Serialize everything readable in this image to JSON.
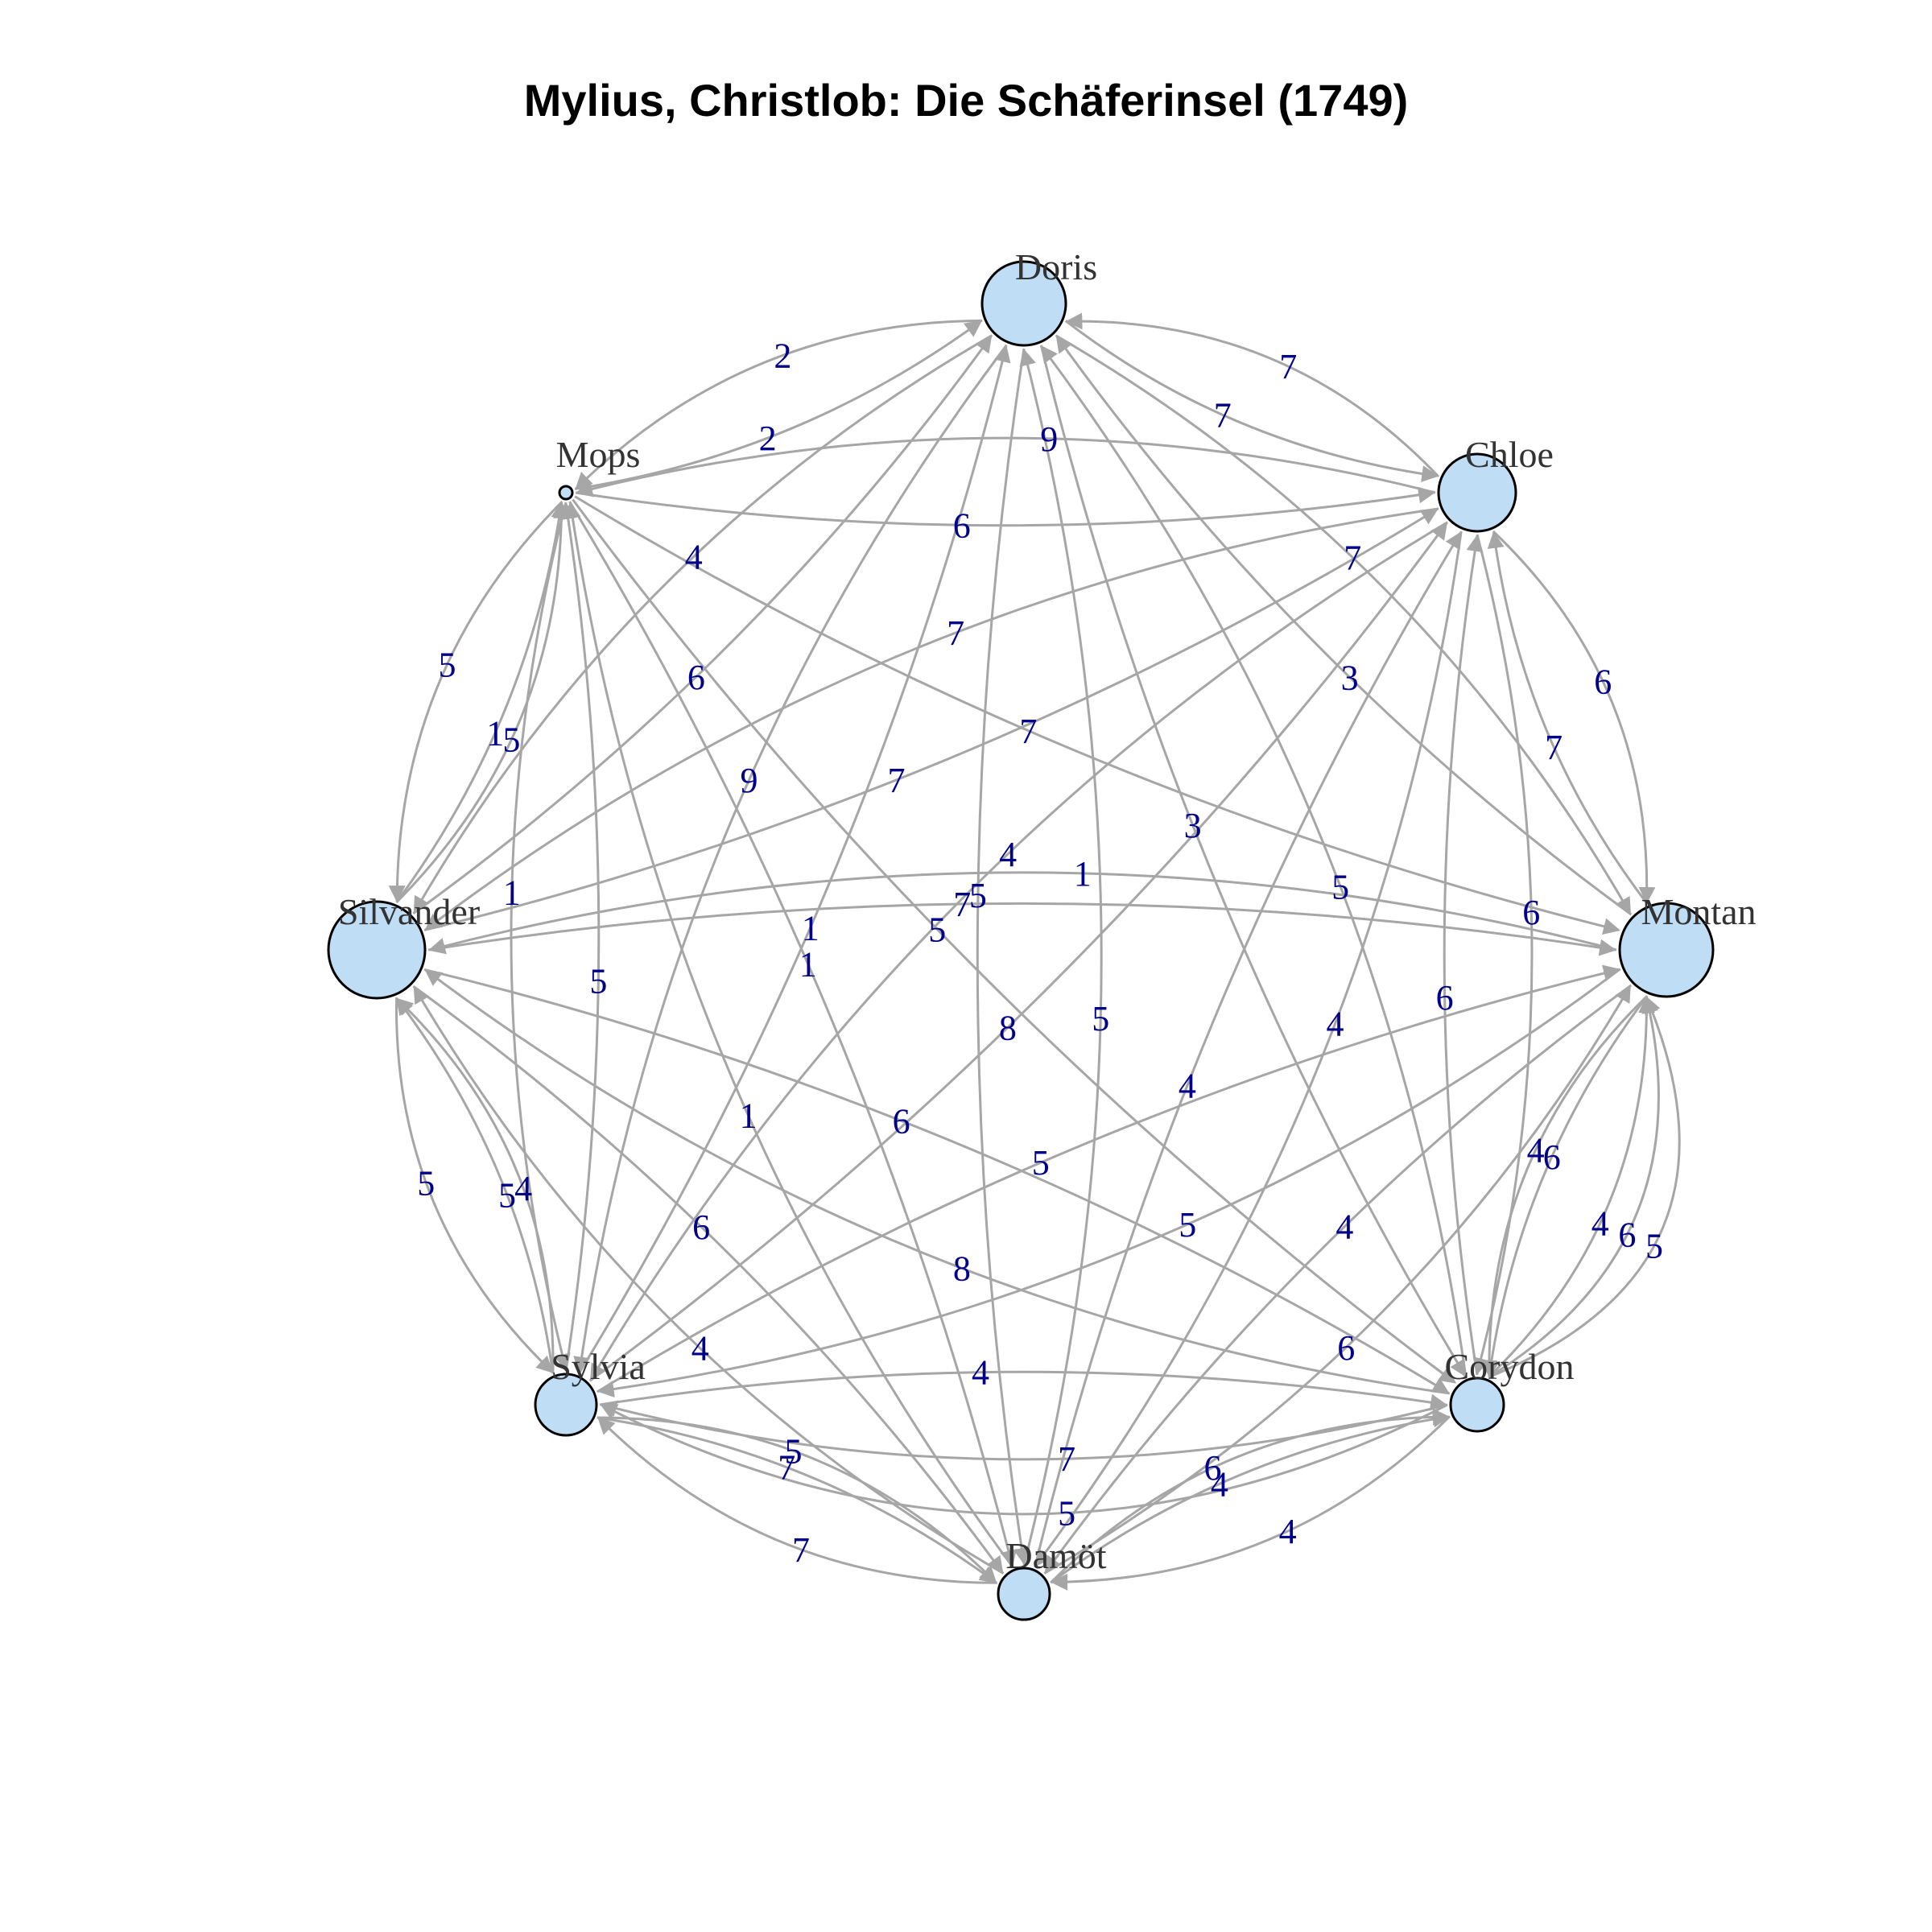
{
  "title": "Mylius, Christlob: Die Schäferinsel (1749)",
  "nodes": [
    {
      "id": "Doris",
      "label": "Doris"
    },
    {
      "id": "Chloe",
      "label": "Chloe"
    },
    {
      "id": "Montan",
      "label": "Montan"
    },
    {
      "id": "Corydon",
      "label": "Corydon"
    },
    {
      "id": "Damöt",
      "label": "Damöt"
    },
    {
      "id": "Sylvia",
      "label": "Sylvia"
    },
    {
      "id": "Silvander",
      "label": "Silvander"
    },
    {
      "id": "Mops",
      "label": "Mops"
    }
  ],
  "edges": [
    {
      "source": "Mops",
      "target": "Doris",
      "weight": "2"
    },
    {
      "source": "Doris",
      "target": "Mops",
      "weight": "2"
    },
    {
      "source": "Chloe",
      "target": "Mops",
      "weight": "9"
    },
    {
      "source": "Doris",
      "target": "Chloe",
      "weight": "7"
    },
    {
      "source": "Chloe",
      "target": "Doris",
      "weight": "7"
    },
    {
      "source": "Silvander",
      "target": "Doris",
      "weight": "6"
    },
    {
      "source": "Chloe",
      "target": "Montan",
      "weight": "6"
    },
    {
      "source": "Montan",
      "target": "Chloe",
      "weight": "7"
    },
    {
      "source": "Corydon",
      "target": "Chloe",
      "weight": "6"
    },
    {
      "source": "Mops",
      "target": "Silvander",
      "weight": "5"
    },
    {
      "source": "Silvander",
      "target": "Mops",
      "weight": "1"
    },
    {
      "source": "Sylvia",
      "target": "Mops",
      "weight": "5"
    },
    {
      "source": "Silvander",
      "target": "Chloe",
      "weight": "7"
    },
    {
      "source": "Mops",
      "target": "Chloe",
      "weight": "6"
    },
    {
      "source": "Mops",
      "target": "Montan",
      "weight": "7"
    },
    {
      "source": "Mops",
      "target": "Corydon",
      "weight": "5"
    },
    {
      "source": "Mops",
      "target": "Damöt",
      "weight": "1"
    },
    {
      "source": "Doris",
      "target": "Sylvia",
      "weight": "9"
    },
    {
      "source": "Doris",
      "target": "Damöt",
      "weight": "5"
    },
    {
      "source": "Damöt",
      "target": "Doris",
      "weight": "5"
    },
    {
      "source": "Doris",
      "target": "Corydon",
      "weight": "3"
    },
    {
      "source": "Corydon",
      "target": "Doris",
      "weight": "5"
    },
    {
      "source": "Montan",
      "target": "Doris",
      "weight": "3"
    },
    {
      "source": "Sylvia",
      "target": "Chloe",
      "weight": "8"
    },
    {
      "source": "Chloe",
      "target": "Sylvia",
      "weight": "4"
    },
    {
      "source": "Silvander",
      "target": "Montan",
      "weight": "7"
    },
    {
      "source": "Montan",
      "target": "Silvander",
      "weight": "1"
    },
    {
      "source": "Damöt",
      "target": "Chloe",
      "weight": "4"
    },
    {
      "source": "Chloe",
      "target": "Damöt",
      "weight": "4"
    },
    {
      "source": "Corydon",
      "target": "Montan",
      "weight": "4"
    },
    {
      "source": "Montan",
      "target": "Corydon",
      "weight": "6"
    },
    {
      "source": "Damöt",
      "target": "Montan",
      "weight": "6"
    },
    {
      "source": "Sylvia",
      "target": "Montan",
      "weight": "5"
    },
    {
      "source": "Montan",
      "target": "Sylvia",
      "weight": "5"
    },
    {
      "source": "Silvander",
      "target": "Sylvia",
      "weight": "5"
    },
    {
      "source": "Sylvia",
      "target": "Silvander",
      "weight": "5"
    },
    {
      "source": "Silvander",
      "target": "Damöt",
      "weight": "6"
    },
    {
      "source": "Silvander",
      "target": "Corydon",
      "weight": "6"
    },
    {
      "source": "Corydon",
      "target": "Silvander",
      "weight": "8"
    },
    {
      "source": "Sylvia",
      "target": "Damöt",
      "weight": "7"
    },
    {
      "source": "Damöt",
      "target": "Sylvia",
      "weight": "7"
    },
    {
      "source": "Sylvia",
      "target": "Corydon",
      "weight": "4"
    },
    {
      "source": "Corydon",
      "target": "Sylvia",
      "weight": "7"
    },
    {
      "source": "Damöt",
      "target": "Corydon",
      "weight": "4"
    },
    {
      "source": "Corydon",
      "target": "Damöt",
      "weight": "4"
    },
    {
      "source": "Silvander",
      "target": "Mops",
      "weight": "5"
    },
    {
      "source": "Mops",
      "target": "Sylvia",
      "weight": "1"
    },
    {
      "source": "Doris",
      "target": "Silvander",
      "weight": "4"
    },
    {
      "source": "Doris",
      "target": "Montan",
      "weight": "7"
    },
    {
      "source": "Montan",
      "target": "Damöt",
      "weight": "4"
    },
    {
      "source": "Sylvia",
      "target": "Doris",
      "weight": "1"
    },
    {
      "source": "Damöt",
      "target": "Silvander",
      "weight": "4"
    },
    {
      "source": "Chloe",
      "target": "Silvander",
      "weight": "7"
    },
    {
      "source": "Corydon",
      "target": "Sylvia",
      "weight": "5"
    },
    {
      "source": "Sylvia",
      "target": "Damöt",
      "weight": "5"
    },
    {
      "source": "Damöt",
      "target": "Corydon",
      "weight": "6"
    },
    {
      "source": "Corydon",
      "target": "Montan",
      "weight": "6"
    },
    {
      "source": "Montan",
      "target": "Corydon",
      "weight": "4"
    },
    {
      "source": "Damöt",
      "target": "Mops",
      "weight": "1"
    },
    {
      "source": "Corydon",
      "target": "Montan",
      "weight": "5"
    },
    {
      "source": "Sylvia",
      "target": "Silvander",
      "weight": "4"
    },
    {
      "source": "Chloe",
      "target": "Corydon",
      "weight": "6"
    }
  ],
  "colors": {
    "node_fill": "#bfdef5",
    "node_stroke": "#000000",
    "edge": "#a6a6a6",
    "edge_label": "#00008b",
    "node_label": "#333333"
  }
}
